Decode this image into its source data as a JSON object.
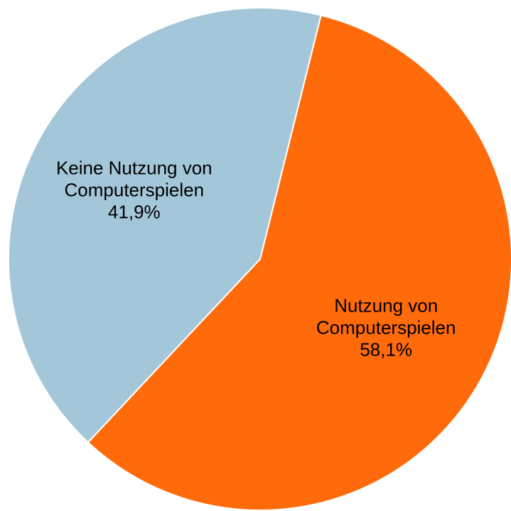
{
  "chart_data": {
    "type": "pie",
    "categories": [
      "Nutzung von Computerspielen",
      "Keine Nutzung von Computerspielen"
    ],
    "values": [
      58.1,
      41.9
    ],
    "value_labels": [
      "58,1%",
      "41,9%"
    ],
    "colors": [
      "#ff6a0a",
      "#a3c6d9"
    ]
  }
}
